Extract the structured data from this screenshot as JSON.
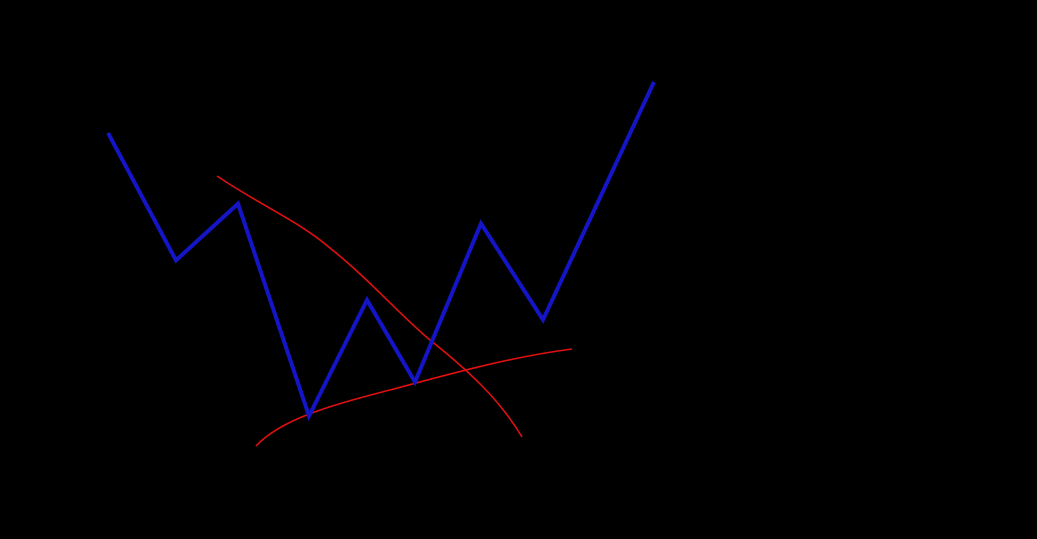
{
  "diagram": {
    "background_color": "#000000",
    "price_line": {
      "color": "#1515c8",
      "points": [
        [
          0,
          100
        ],
        [
          1,
          55
        ],
        [
          2,
          75
        ],
        [
          3,
          0
        ],
        [
          4,
          41
        ],
        [
          5,
          12
        ],
        [
          6,
          68
        ],
        [
          7,
          34
        ],
        [
          8,
          118
        ]
      ]
    },
    "trend_lines": {
      "color": "#e01010"
    }
  }
}
